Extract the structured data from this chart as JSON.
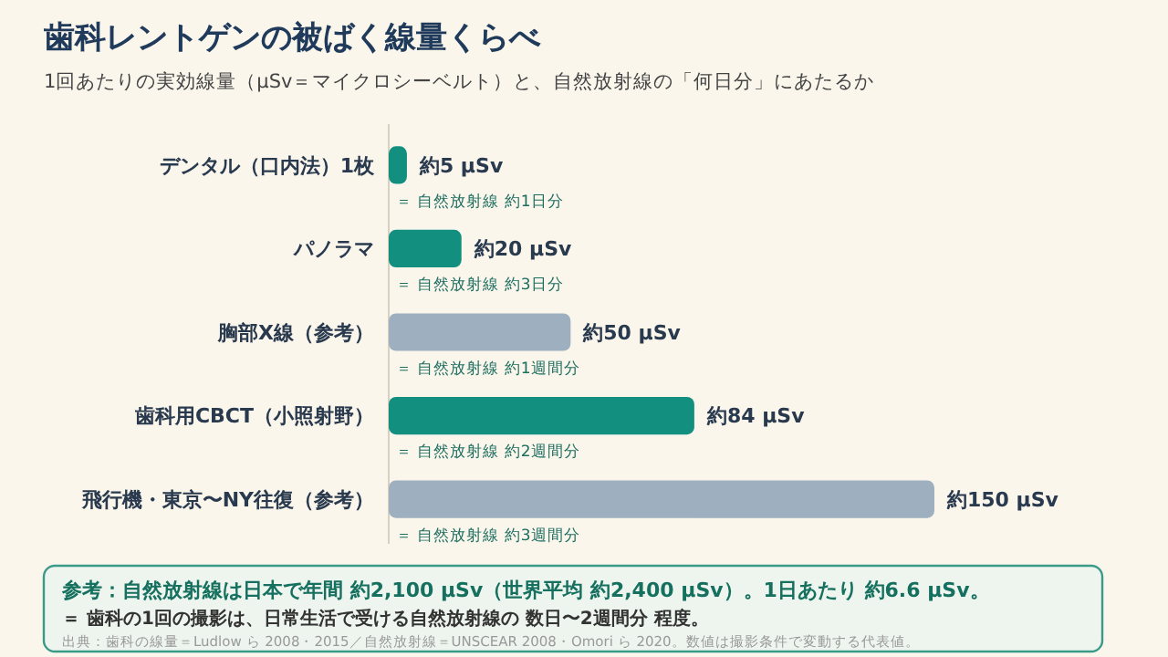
{
  "chart_data": {
    "type": "bar",
    "orientation": "horizontal",
    "title": "歯科レントゲンの被ばく線量くらべ",
    "subtitle": "1回あたりの実効線量（µSv＝マイクロシーベルト）と、自然放射線の「何日分」にあたるか",
    "categories": [
      "デンタル（口内法）1枚",
      "パノラマ",
      "胸部X線（参考）",
      "歯科用CBCT（小照射野）",
      "飛行機・東京〜NY往復（参考）"
    ],
    "values": [
      5,
      20,
      50,
      84,
      150
    ],
    "value_labels": [
      "約5 µSv",
      "約20 µSv",
      "約50 µSv",
      "約84 µSv",
      "約150 µSv"
    ],
    "colors": [
      "#138f7f",
      "#138f7f",
      "#9eb0bf",
      "#138f7f",
      "#9eb0bf"
    ],
    "annotations": [
      "＝ 自然放射線 約1日分",
      "＝ 自然放射線 約3日分",
      "＝ 自然放射線 約1週間分",
      "＝ 自然放射線 約2週間分",
      "＝ 自然放射線 約3週間分",
      "参考：自然放射線は日本で年間 約2,100 µSv（世界平均 約2,400 µSv）。1日あたり 約6.6 µSv。",
      "＝ 歯科の1回の撮影は、日常生活で受ける自然放射線の 数日〜2週間分 程度。",
      "出典：歯科の線量＝Ludlow ら 2008・2015／自然放射線＝UNSCEAR 2008・Omori ら 2020。数値は撮影条件で変動する代表値。"
    ]
  }
}
